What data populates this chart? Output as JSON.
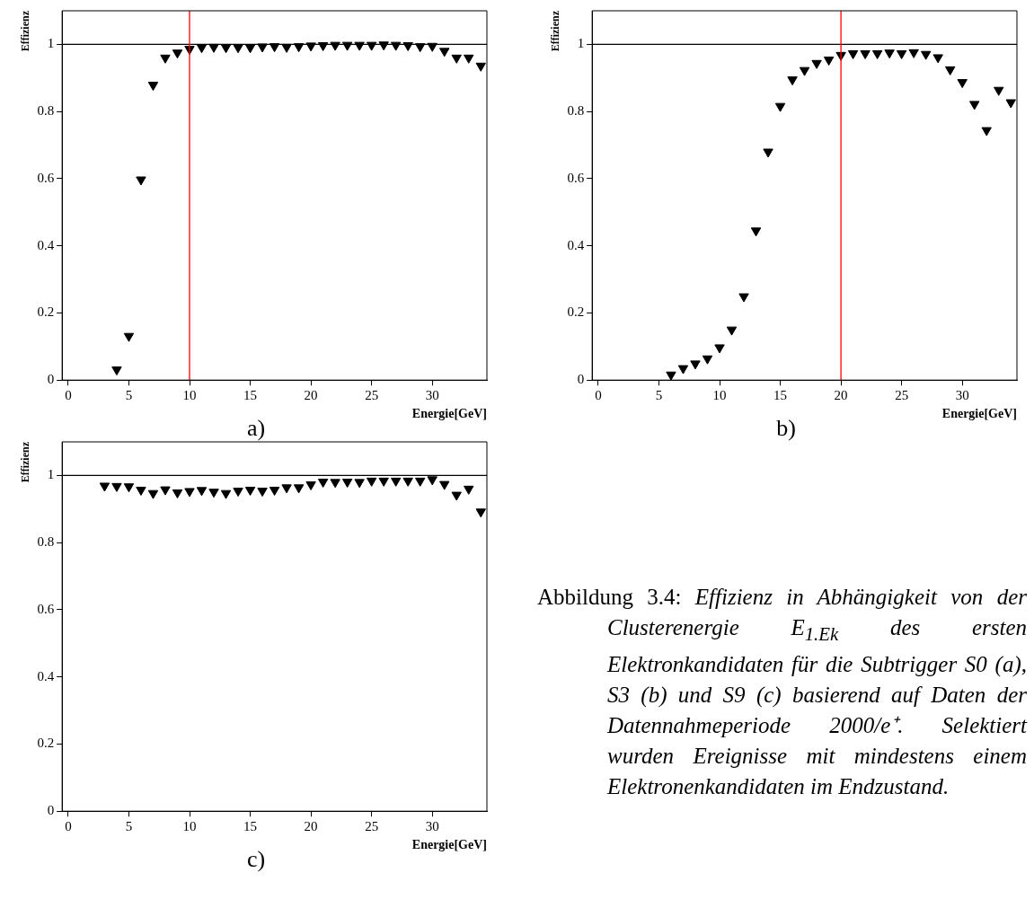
{
  "chart_data": [
    {
      "type": "scatter",
      "title": "a)",
      "xlabel": "Energie[GeV]",
      "ylabel": "Effizienz",
      "marker": "triangle",
      "grid": false,
      "xlim": [
        -0.5,
        34.5
      ],
      "ylim": [
        0,
        1.1
      ],
      "xticks": [
        0,
        5,
        10,
        15,
        20,
        25,
        30
      ],
      "yticks": [
        0,
        0.2,
        0.4,
        0.6,
        0.8,
        1
      ],
      "x": [
        4,
        5,
        6,
        7,
        8,
        9,
        10,
        11,
        12,
        13,
        14,
        15,
        16,
        17,
        18,
        19,
        20,
        21,
        22,
        23,
        24,
        25,
        26,
        27,
        28,
        29,
        30,
        31,
        32,
        33,
        34
      ],
      "series": [
        {
          "color": "#000000",
          "values": [
            0.031,
            0.131,
            0.597,
            0.879,
            0.96,
            0.975,
            0.986,
            0.991,
            0.992,
            0.991,
            0.991,
            0.991,
            0.993,
            0.994,
            0.992,
            0.994,
            0.996,
            0.997,
            0.998,
            0.998,
            0.998,
            0.998,
            0.999,
            0.998,
            0.997,
            0.994,
            0.995,
            0.98,
            0.96,
            0.96,
            0.936
          ]
        }
      ],
      "ref_lines": [
        {
          "axis": "y",
          "value": 1,
          "color": "#000000"
        },
        {
          "axis": "x",
          "value": 10,
          "color": "#ff0000"
        }
      ]
    },
    {
      "type": "scatter",
      "title": "b)",
      "xlabel": "Energie[GeV]",
      "ylabel": "Effizienz",
      "marker": "triangle",
      "grid": false,
      "xlim": [
        -0.5,
        34.5
      ],
      "ylim": [
        0,
        1.1
      ],
      "xticks": [
        0,
        5,
        10,
        15,
        20,
        25,
        30
      ],
      "yticks": [
        0,
        0.2,
        0.4,
        0.6,
        0.8,
        1
      ],
      "x": [
        6,
        7,
        8,
        9,
        10,
        11,
        12,
        13,
        14,
        15,
        16,
        17,
        18,
        19,
        20,
        21,
        22,
        23,
        24,
        25,
        26,
        27,
        28,
        29,
        30,
        31,
        32,
        33,
        34
      ],
      "series": [
        {
          "color": "#000000",
          "values": [
            0.016,
            0.035,
            0.049,
            0.064,
            0.097,
            0.15,
            0.249,
            0.445,
            0.68,
            0.816,
            0.895,
            0.923,
            0.944,
            0.954,
            0.968,
            0.973,
            0.973,
            0.973,
            0.975,
            0.973,
            0.976,
            0.971,
            0.961,
            0.925,
            0.887,
            0.822,
            0.744,
            0.864,
            0.827
          ]
        }
      ],
      "ref_lines": [
        {
          "axis": "y",
          "value": 1,
          "color": "#000000"
        },
        {
          "axis": "x",
          "value": 20,
          "color": "#ff0000"
        }
      ]
    },
    {
      "type": "scatter",
      "title": "c)",
      "xlabel": "Energie[GeV]",
      "ylabel": "Effizienz",
      "marker": "triangle",
      "grid": false,
      "xlim": [
        -0.5,
        34.5
      ],
      "ylim": [
        0,
        1.1
      ],
      "xticks": [
        0,
        5,
        10,
        15,
        20,
        25,
        30
      ],
      "yticks": [
        0,
        0.2,
        0.4,
        0.6,
        0.8,
        1
      ],
      "x": [
        3,
        4,
        5,
        6,
        7,
        8,
        9,
        10,
        11,
        12,
        13,
        14,
        15,
        16,
        17,
        18,
        19,
        20,
        21,
        22,
        23,
        24,
        25,
        26,
        27,
        28,
        29,
        30,
        31,
        32,
        33,
        34
      ],
      "series": [
        {
          "color": "#000000",
          "values": [
            0.969,
            0.968,
            0.967,
            0.957,
            0.947,
            0.958,
            0.949,
            0.953,
            0.956,
            0.951,
            0.947,
            0.954,
            0.957,
            0.954,
            0.957,
            0.964,
            0.964,
            0.973,
            0.981,
            0.98,
            0.981,
            0.98,
            0.984,
            0.984,
            0.984,
            0.984,
            0.984,
            0.988,
            0.974,
            0.942,
            0.96,
            0.892
          ]
        }
      ],
      "ref_lines": [
        {
          "axis": "y",
          "value": 1,
          "color": "#000000"
        }
      ]
    },
    {
      "type": "other",
      "annotations": [
        "Abbildung 3.4:",
        "Effizienz in Abhängigkeit von der Clusterenergie E$_{1.Ek}$ des ersten Elektronkandidaten für die Subtrigger S0 (a), S3 (b) und S9 (c) basierend auf Daten der Datennahmeperiode 2000/e⁺. Selektiert wurden Ereignisse mit mindestens einem Elektronenkandidaten im Endzustand."
      ]
    }
  ]
}
